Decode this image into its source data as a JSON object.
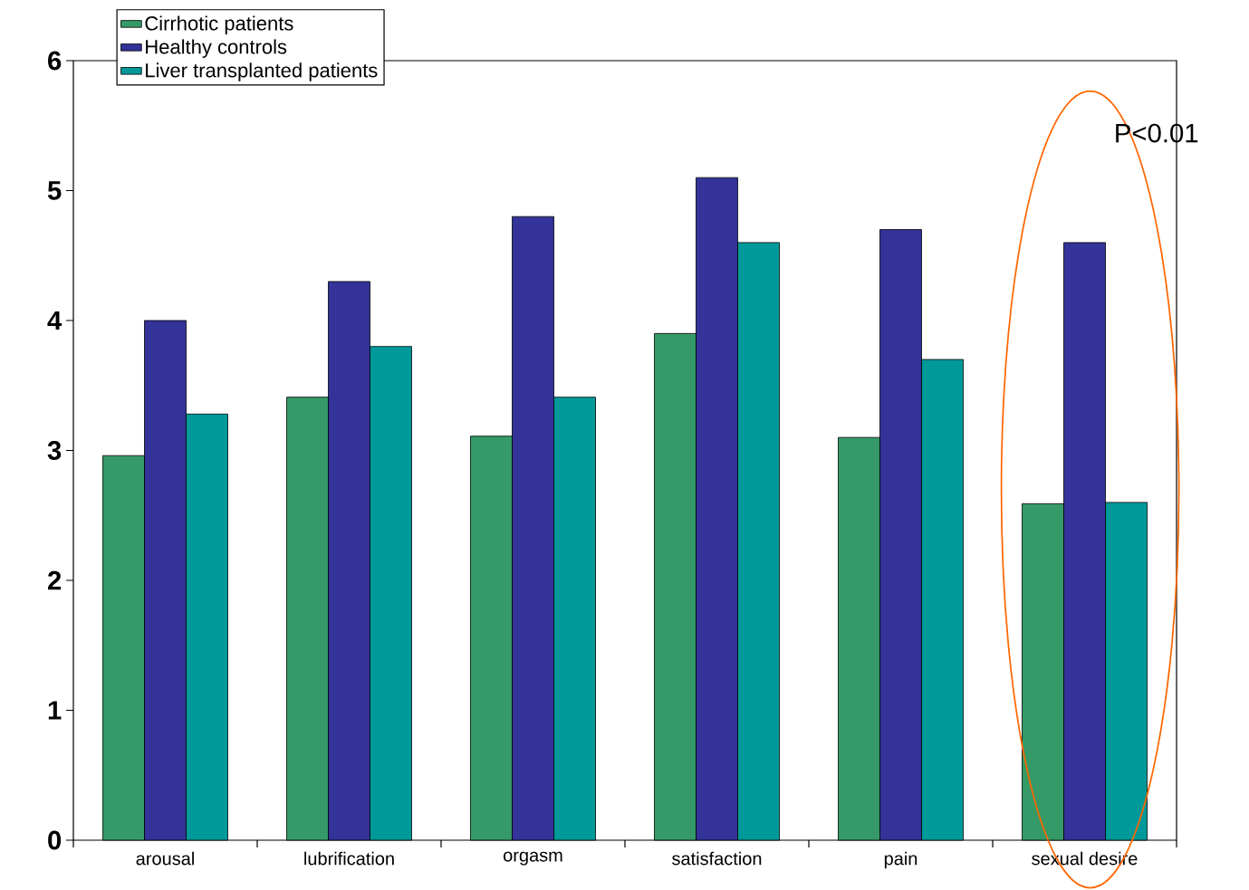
{
  "chart_data": {
    "type": "bar",
    "categories": [
      "arousal",
      "lubrification",
      "orgasm",
      "satisfaction",
      "pain",
      "sexual desire"
    ],
    "series": [
      {
        "name": "Cirrhotic patients",
        "color": "#359a67",
        "values": [
          2.96,
          3.41,
          3.11,
          3.9,
          3.1,
          2.59
        ]
      },
      {
        "name": "Healthy controls",
        "color": "#333399",
        "values": [
          4.0,
          4.3,
          4.8,
          5.1,
          4.7,
          4.6
        ]
      },
      {
        "name": "Liver transplanted patients",
        "color": "#009999",
        "values": [
          3.28,
          3.8,
          3.41,
          4.6,
          3.7,
          2.6
        ]
      }
    ],
    "ylim": [
      0,
      6
    ],
    "yticks": [
      0,
      1,
      2,
      3,
      4,
      5,
      6
    ],
    "grid": false,
    "legend": "top left",
    "annotations": [
      "P<0.01"
    ]
  }
}
